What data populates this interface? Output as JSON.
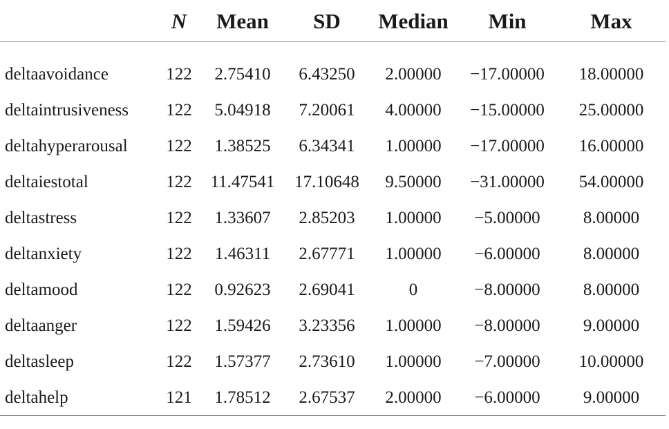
{
  "table": {
    "headers": [
      "",
      "N",
      "Mean",
      "SD",
      "Median",
      "Min",
      "Max"
    ],
    "rows": [
      {
        "variable": "deltaavoidance",
        "n": "122",
        "mean": "2.75410",
        "sd": "6.43250",
        "median": "2.00000",
        "min": "−17.00000",
        "max": "18.00000"
      },
      {
        "variable": "deltaintrusiveness",
        "n": "122",
        "mean": "5.04918",
        "sd": "7.20061",
        "median": "4.00000",
        "min": "−15.00000",
        "max": "25.00000"
      },
      {
        "variable": "deltahyperarousal",
        "n": "122",
        "mean": "1.38525",
        "sd": "6.34341",
        "median": "1.00000",
        "min": "−17.00000",
        "max": "16.00000"
      },
      {
        "variable": "deltaiestotal",
        "n": "122",
        "mean": "11.47541",
        "sd": "17.10648",
        "median": "9.50000",
        "min": "−31.00000",
        "max": "54.00000"
      },
      {
        "variable": "deltastress",
        "n": "122",
        "mean": "1.33607",
        "sd": "2.85203",
        "median": "1.00000",
        "min": "−5.00000",
        "max": "8.00000"
      },
      {
        "variable": "deltanxiety",
        "n": "122",
        "mean": "1.46311",
        "sd": "2.67771",
        "median": "1.00000",
        "min": "−6.00000",
        "max": "8.00000"
      },
      {
        "variable": "deltamood",
        "n": "122",
        "mean": "0.92623",
        "sd": "2.69041",
        "median": "0",
        "min": "−8.00000",
        "max": "8.00000"
      },
      {
        "variable": "deltaanger",
        "n": "122",
        "mean": "1.59426",
        "sd": "3.23356",
        "median": "1.00000",
        "min": "−8.00000",
        "max": "9.00000"
      },
      {
        "variable": "deltasleep",
        "n": "122",
        "mean": "1.57377",
        "sd": "2.73610",
        "median": "1.00000",
        "min": "−7.00000",
        "max": "10.00000"
      },
      {
        "variable": "deltahelp",
        "n": "121",
        "mean": "1.78512",
        "sd": "2.67537",
        "median": "2.00000",
        "min": "−6.00000",
        "max": "9.00000"
      }
    ]
  }
}
